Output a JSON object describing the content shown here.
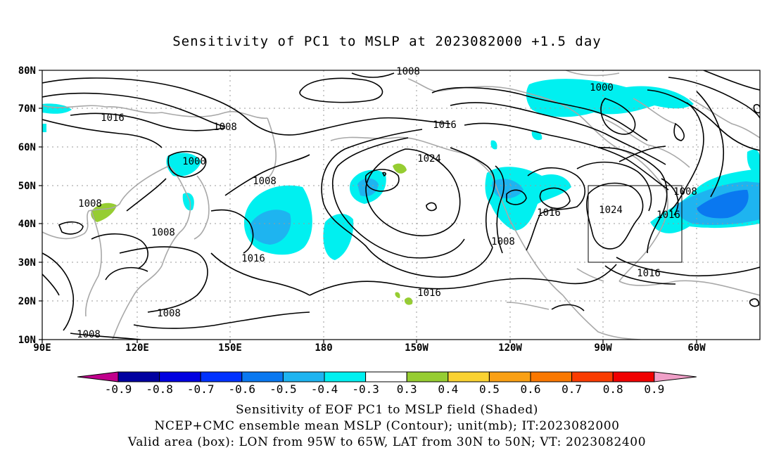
{
  "title": "Sensitivity of PC1 to MSLP at 2023082000 +1.5 day",
  "map": {
    "lon_labels": [
      "90E",
      "120E",
      "150E",
      "180",
      "150W",
      "120W",
      "90W",
      "60W"
    ],
    "lat_labels": [
      "80N",
      "70N",
      "60N",
      "50N",
      "40N",
      "30N",
      "20N",
      "10N"
    ],
    "contour_labels": [
      {
        "text": "1008"
      },
      {
        "text": "1000"
      },
      {
        "text": "1016"
      },
      {
        "text": "1008"
      },
      {
        "text": "1000"
      },
      {
        "text": "1008"
      },
      {
        "text": "1008"
      },
      {
        "text": "1008"
      },
      {
        "text": "1016"
      },
      {
        "text": "1024"
      },
      {
        "text": "1016"
      },
      {
        "text": "1016"
      },
      {
        "text": "1008"
      },
      {
        "text": "1024"
      },
      {
        "text": "1016"
      },
      {
        "text": "1008"
      },
      {
        "text": "1016"
      },
      {
        "text": "1008"
      },
      {
        "text": "1008"
      },
      {
        "text": "1016"
      }
    ],
    "valid_box": {
      "lon_from": "95W",
      "lon_to": "65W",
      "lat_from": "30N",
      "lat_to": "50N"
    }
  },
  "colorbar": {
    "labels": [
      "-0.9",
      "-0.8",
      "-0.7",
      "-0.6",
      "-0.5",
      "-0.4",
      "-0.3",
      "0.3",
      "0.4",
      "0.5",
      "0.6",
      "0.7",
      "0.8",
      "0.9"
    ],
    "colors": [
      "#0000a0",
      "#0000e0",
      "#0032ff",
      "#0a78f0",
      "#1eb4f0",
      "#00f0f0",
      "#ffffff",
      "#96cd32",
      "#fad232",
      "#faa014",
      "#fa7800",
      "#fa3c00",
      "#f00000"
    ],
    "end_low": "#c0008c",
    "end_high": "#f0a0c8"
  },
  "captions": [
    "Sensitivity of EOF PC1 to MSLP field (Shaded)",
    "NCEP+CMC ensemble mean MSLP (Contour); unit(mb); IT:2023082000",
    "Valid area (box): LON from 95W to 65W, LAT from 30N to 50N; VT: 2023082400"
  ]
}
